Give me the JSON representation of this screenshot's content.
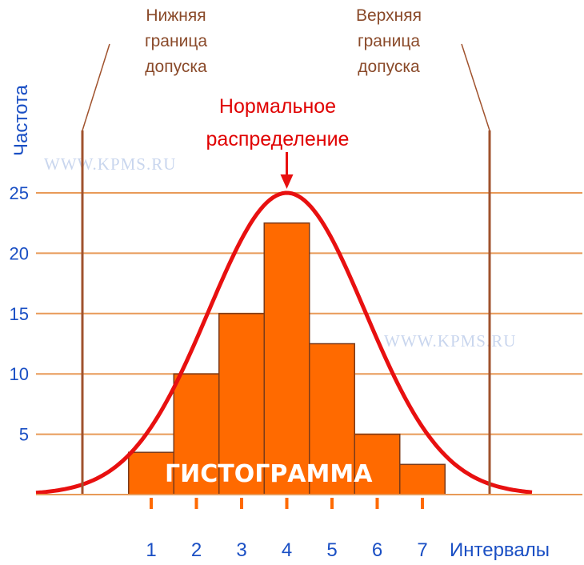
{
  "chart_data": {
    "type": "bar",
    "categories": [
      "1",
      "2",
      "3",
      "4",
      "5",
      "6",
      "7"
    ],
    "values": [
      3.5,
      10,
      15,
      22.5,
      12.5,
      5,
      2.5
    ],
    "ylabel": "Частота",
    "xlabel": "Интервалы",
    "ylim": [
      0,
      25
    ],
    "yticks": [
      "5",
      "10",
      "15",
      "20",
      "25"
    ],
    "grid": true,
    "curve": {
      "type": "normal",
      "label": "Нормальное распределение",
      "peak_x": 4,
      "peak_y": 25
    },
    "limits": [
      {
        "label_lines": [
          "Нижняя",
          "граница",
          "допуска"
        ]
      },
      {
        "label_lines": [
          "Верхняя",
          "граница",
          "допуска"
        ]
      }
    ],
    "annotation": "ГИСТОГРАММА",
    "watermark": "WWW.KPMS.RU"
  },
  "colors": {
    "bar_fill": "#ff6a00",
    "bar_stroke": "#7a3a1a",
    "grid": "#e89a58",
    "curve": "#e81010",
    "limit_line": "#a0522d",
    "axis_text": "#1a4fc4"
  }
}
